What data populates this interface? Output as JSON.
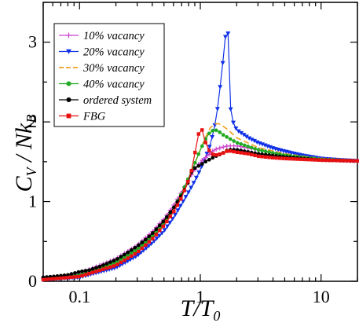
{
  "chart_data": {
    "type": "line",
    "x_scale": "log",
    "xlim": [
      0.05,
      20
    ],
    "ylim": [
      0,
      3.5
    ],
    "xlabel_main": "T/T",
    "xlabel_sub": "0",
    "ylabel_main": "C",
    "ylabel_sub1": "V",
    "ylabel_mid": " / Nk",
    "ylabel_sub2": "B",
    "x_ticks": [
      {
        "value": 0.1,
        "label": "0.1"
      },
      {
        "value": 1,
        "label": "1"
      },
      {
        "value": 10,
        "label": "10"
      }
    ],
    "y_ticks": [
      {
        "value": 0,
        "label": "0"
      },
      {
        "value": 1,
        "label": "1"
      },
      {
        "value": 2,
        "label": "2"
      },
      {
        "value": 3,
        "label": "3"
      }
    ],
    "legend_position": "top-left",
    "series": [
      {
        "name": "10% vacancy",
        "color": "#cc44cc",
        "marker": "plus",
        "points": [
          [
            0.05,
            0.04
          ],
          [
            0.08,
            0.07
          ],
          [
            0.1,
            0.1
          ],
          [
            0.2,
            0.28
          ],
          [
            0.3,
            0.45
          ],
          [
            0.4,
            0.62
          ],
          [
            0.5,
            0.78
          ],
          [
            0.6,
            0.95
          ],
          [
            0.7,
            1.12
          ],
          [
            0.8,
            1.28
          ],
          [
            0.9,
            1.4
          ],
          [
            1.0,
            1.5
          ],
          [
            1.1,
            1.55
          ],
          [
            1.2,
            1.6
          ],
          [
            1.3,
            1.65
          ],
          [
            1.5,
            1.68
          ],
          [
            1.7,
            1.7
          ],
          [
            2,
            1.7
          ],
          [
            3,
            1.65
          ],
          [
            5,
            1.58
          ],
          [
            10,
            1.53
          ],
          [
            20,
            1.51
          ]
        ]
      },
      {
        "name": "20% vacancy",
        "color": "#1030e8",
        "marker": "triangle-down",
        "points": [
          [
            0.05,
            0.02
          ],
          [
            0.1,
            0.05
          ],
          [
            0.2,
            0.17
          ],
          [
            0.3,
            0.32
          ],
          [
            0.4,
            0.48
          ],
          [
            0.5,
            0.63
          ],
          [
            0.6,
            0.8
          ],
          [
            0.7,
            0.97
          ],
          [
            0.8,
            1.12
          ],
          [
            0.9,
            1.26
          ],
          [
            1.0,
            1.4
          ],
          [
            1.1,
            1.55
          ],
          [
            1.2,
            1.7
          ],
          [
            1.3,
            1.9
          ],
          [
            1.4,
            2.2
          ],
          [
            1.5,
            2.6
          ],
          [
            1.6,
            3.0
          ],
          [
            1.65,
            3.25
          ],
          [
            1.7,
            3.1
          ],
          [
            1.75,
            2.4
          ],
          [
            1.8,
            2.05
          ],
          [
            2,
            1.9
          ],
          [
            2.5,
            1.8
          ],
          [
            3,
            1.74
          ],
          [
            4,
            1.67
          ],
          [
            5,
            1.63
          ],
          [
            7,
            1.58
          ],
          [
            10,
            1.54
          ],
          [
            15,
            1.52
          ],
          [
            20,
            1.51
          ]
        ]
      },
      {
        "name": "30% vacancy",
        "color": "#f0a020",
        "marker": "dash",
        "points": [
          [
            0.05,
            0.03
          ],
          [
            0.1,
            0.08
          ],
          [
            0.2,
            0.22
          ],
          [
            0.3,
            0.38
          ],
          [
            0.4,
            0.55
          ],
          [
            0.5,
            0.72
          ],
          [
            0.6,
            0.9
          ],
          [
            0.7,
            1.08
          ],
          [
            0.8,
            1.28
          ],
          [
            0.9,
            1.48
          ],
          [
            1.0,
            1.65
          ],
          [
            1.1,
            1.8
          ],
          [
            1.2,
            1.92
          ],
          [
            1.3,
            1.97
          ],
          [
            1.4,
            1.98
          ],
          [
            1.5,
            1.96
          ],
          [
            1.7,
            1.9
          ],
          [
            2,
            1.8
          ],
          [
            3,
            1.68
          ],
          [
            5,
            1.6
          ],
          [
            10,
            1.54
          ],
          [
            20,
            1.51
          ]
        ]
      },
      {
        "name": "40% vacancy",
        "color": "#22aa22",
        "marker": "circle",
        "points": [
          [
            0.05,
            0.03
          ],
          [
            0.1,
            0.08
          ],
          [
            0.2,
            0.24
          ],
          [
            0.3,
            0.4
          ],
          [
            0.4,
            0.57
          ],
          [
            0.5,
            0.74
          ],
          [
            0.6,
            0.92
          ],
          [
            0.7,
            1.1
          ],
          [
            0.8,
            1.3
          ],
          [
            0.9,
            1.48
          ],
          [
            1.0,
            1.65
          ],
          [
            1.1,
            1.78
          ],
          [
            1.2,
            1.87
          ],
          [
            1.3,
            1.9
          ],
          [
            1.4,
            1.89
          ],
          [
            1.5,
            1.85
          ],
          [
            1.7,
            1.8
          ],
          [
            2,
            1.74
          ],
          [
            3,
            1.65
          ],
          [
            5,
            1.58
          ],
          [
            10,
            1.53
          ],
          [
            20,
            1.51
          ]
        ]
      },
      {
        "name": "ordered system",
        "color": "#000000",
        "marker": "circle",
        "points": [
          [
            0.05,
            0.05
          ],
          [
            0.06,
            0.06
          ],
          [
            0.07,
            0.07
          ],
          [
            0.08,
            0.08
          ],
          [
            0.1,
            0.12
          ],
          [
            0.12,
            0.14
          ],
          [
            0.15,
            0.19
          ],
          [
            0.2,
            0.27
          ],
          [
            0.25,
            0.36
          ],
          [
            0.3,
            0.44
          ],
          [
            0.35,
            0.52
          ],
          [
            0.4,
            0.6
          ],
          [
            0.5,
            0.76
          ],
          [
            0.6,
            0.92
          ],
          [
            0.7,
            1.08
          ],
          [
            0.8,
            1.25
          ],
          [
            0.85,
            1.38
          ],
          [
            0.9,
            1.42
          ],
          [
            1.0,
            1.46
          ],
          [
            1.1,
            1.5
          ],
          [
            1.2,
            1.53
          ],
          [
            1.3,
            1.56
          ],
          [
            1.5,
            1.6
          ],
          [
            1.7,
            1.65
          ],
          [
            2,
            1.65
          ],
          [
            3,
            1.6
          ],
          [
            5,
            1.56
          ],
          [
            10,
            1.52
          ],
          [
            20,
            1.51
          ]
        ]
      },
      {
        "name": "FBG",
        "color": "#e81010",
        "marker": "square",
        "points": [
          [
            0.05,
            0.02
          ],
          [
            0.1,
            0.06
          ],
          [
            0.2,
            0.2
          ],
          [
            0.3,
            0.36
          ],
          [
            0.4,
            0.53
          ],
          [
            0.5,
            0.7
          ],
          [
            0.6,
            0.87
          ],
          [
            0.7,
            1.05
          ],
          [
            0.8,
            1.27
          ],
          [
            0.85,
            1.4
          ],
          [
            0.9,
            1.6
          ],
          [
            0.95,
            1.8
          ],
          [
            1.0,
            1.94
          ],
          [
            1.05,
            1.88
          ],
          [
            1.1,
            1.75
          ],
          [
            1.2,
            1.62
          ],
          [
            1.3,
            1.58
          ],
          [
            1.5,
            1.6
          ],
          [
            1.7,
            1.64
          ],
          [
            2,
            1.62
          ],
          [
            2.5,
            1.6
          ],
          [
            3,
            1.57
          ],
          [
            4,
            1.55
          ],
          [
            5,
            1.54
          ],
          [
            7,
            1.53
          ],
          [
            10,
            1.52
          ],
          [
            20,
            1.51
          ]
        ]
      }
    ]
  }
}
